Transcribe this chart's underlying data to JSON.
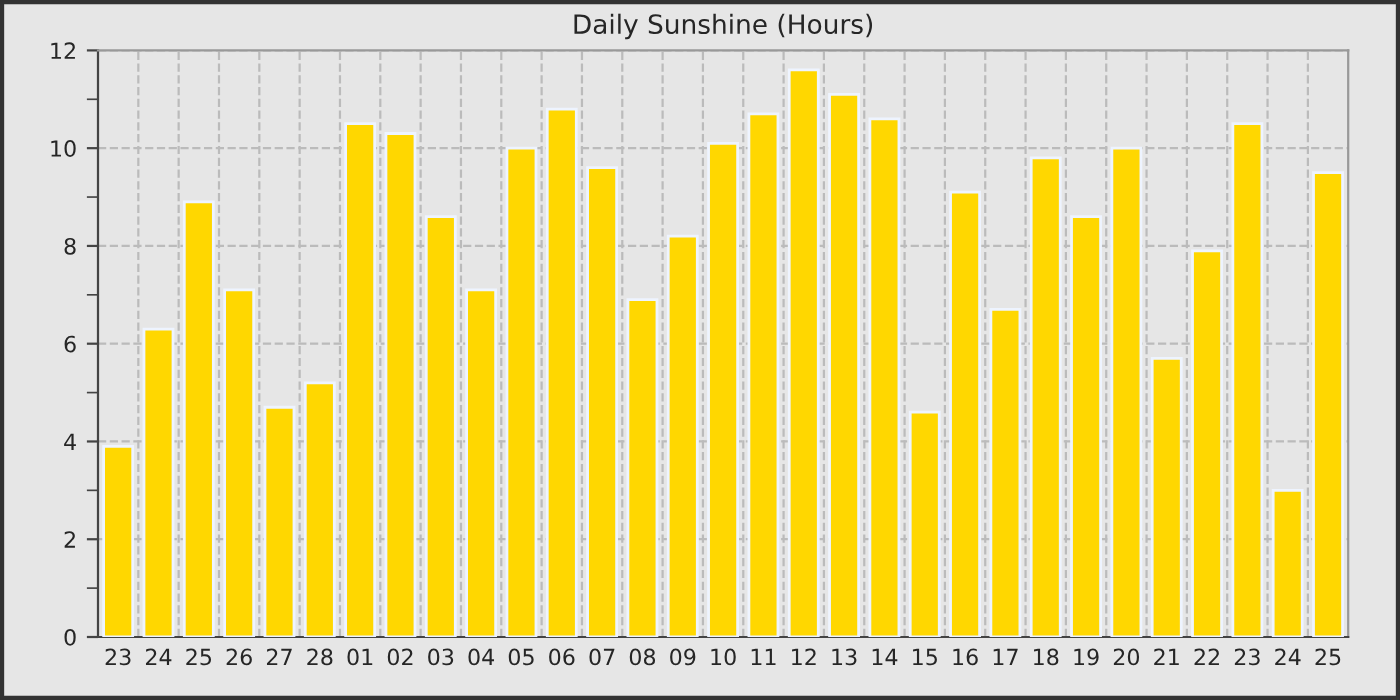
{
  "chart_data": {
    "type": "bar",
    "title": "Daily Sunshine (Hours)",
    "categories": [
      "23",
      "24",
      "25",
      "26",
      "27",
      "28",
      "01",
      "02",
      "03",
      "04",
      "05",
      "06",
      "07",
      "08",
      "09",
      "10",
      "11",
      "12",
      "13",
      "14",
      "15",
      "16",
      "17",
      "18",
      "19",
      "20",
      "21",
      "22",
      "23",
      "24",
      "25"
    ],
    "values": [
      3.9,
      6.3,
      8.9,
      7.1,
      4.7,
      5.2,
      10.5,
      10.3,
      8.6,
      7.1,
      10.0,
      10.8,
      9.6,
      6.9,
      8.2,
      10.1,
      10.7,
      11.6,
      11.1,
      10.6,
      4.6,
      9.1,
      6.7,
      9.8,
      8.6,
      10.0,
      5.7,
      7.9,
      10.5,
      3.0,
      9.5
    ],
    "color": "#ffd700",
    "ylim": [
      0,
      12
    ],
    "yticks": [
      0,
      2,
      4,
      6,
      8,
      10,
      12
    ],
    "grid": true
  }
}
